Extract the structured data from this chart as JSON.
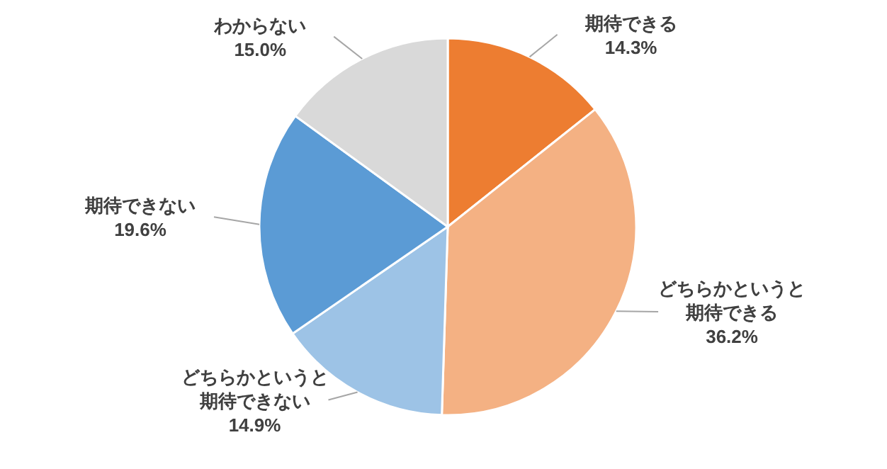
{
  "chart_data": {
    "type": "pie",
    "categories": [
      "期待できる",
      "どちらかというと期待できる",
      "どちらかというと期待できない",
      "期待できない",
      "わからない"
    ],
    "values": [
      14.3,
      36.2,
      14.9,
      19.6,
      15.0
    ],
    "value_labels": [
      "14.3%",
      "36.2%",
      "14.9%",
      "19.6%",
      "15.0%"
    ],
    "colors": [
      "#ed7d31",
      "#f4b183",
      "#9dc3e6",
      "#5b9bd5",
      "#d9d9d9"
    ],
    "legend": false
  }
}
